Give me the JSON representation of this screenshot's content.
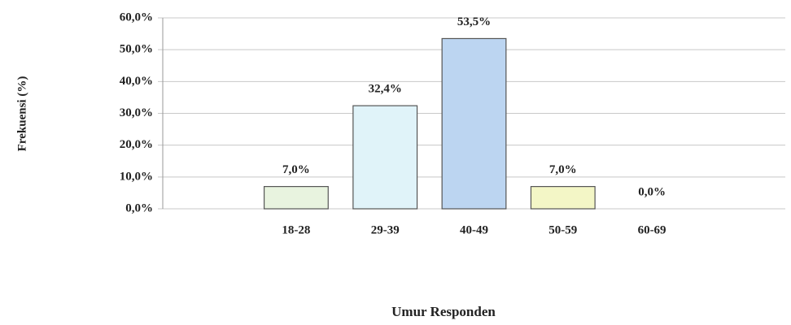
{
  "chart_data": {
    "type": "bar",
    "y_label": "Frekuensi (%)",
    "x_label": "Umur Responden",
    "categories": [
      null,
      "18-28",
      "29-39",
      "40-49",
      "50-59",
      "60-69",
      null
    ],
    "values": [
      null,
      7.0,
      32.4,
      53.5,
      7.0,
      0.0,
      null
    ],
    "value_labels": [
      null,
      "7,0%",
      "32,4%",
      "53,5%",
      "7,0%",
      "0,0%",
      null
    ],
    "colors": [
      null,
      "#e8f3df",
      "#e0f3f9",
      "#bcd5f1",
      "#f3f6c6",
      "#e8f3df",
      null
    ],
    "ylim": [
      0,
      60
    ],
    "yticks": [
      {
        "value": 0,
        "label": "0,0%"
      },
      {
        "value": 10,
        "label": "10,0%"
      },
      {
        "value": 20,
        "label": "20,0%"
      },
      {
        "value": 30,
        "label": "30,0%"
      },
      {
        "value": 40,
        "label": "40,0%"
      },
      {
        "value": 50,
        "label": "50,0%"
      },
      {
        "value": 60,
        "label": "60,0%"
      }
    ],
    "grid": true
  }
}
